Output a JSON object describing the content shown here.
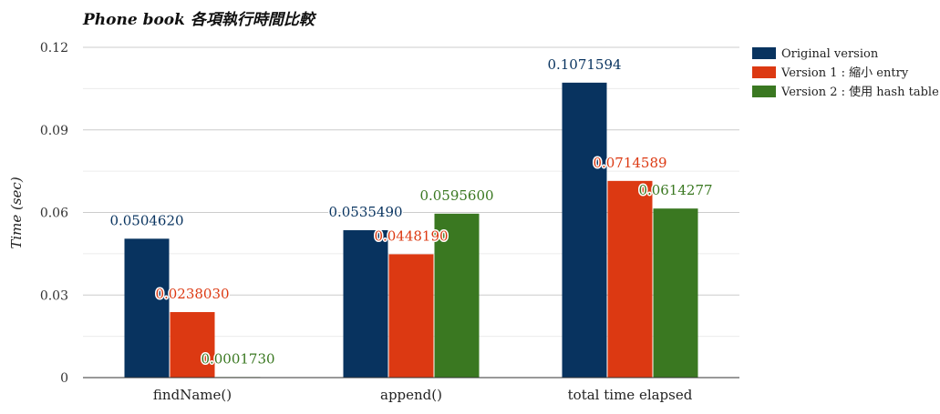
{
  "chart_data": {
    "type": "bar",
    "title": "Phone book 各項執行時間比較",
    "ylabel": "Time (sec)",
    "xlabel": "",
    "ylim": [
      0,
      0.12
    ],
    "yticks": [
      0,
      0.03,
      0.06,
      0.09,
      0.12
    ],
    "ytick_labels": [
      "0",
      "0.03",
      "0.06",
      "0.09",
      "0.12"
    ],
    "grid": true,
    "legend_position": "top-right",
    "categories": [
      "findName()",
      "append()",
      "total time elapsed"
    ],
    "series": [
      {
        "name": "Original version",
        "color": "#08335f",
        "values": [
          0.050462,
          0.053549,
          0.1071594
        ],
        "labels": [
          "0.0504620",
          "0.0535490",
          "0.1071594"
        ]
      },
      {
        "name": "Version 1 : 縮小 entry",
        "color": "#dc3912",
        "values": [
          0.023803,
          0.044819,
          0.0714589
        ],
        "labels": [
          "0.0238030",
          "0.0448190",
          "0.0714589"
        ]
      },
      {
        "name": "Version 2 : 使用 hash table",
        "color": "#3a7821",
        "values": [
          0.000173,
          0.05956,
          0.0614277
        ],
        "labels": [
          "0.0001730",
          "0.0595600",
          "0.0614277"
        ]
      }
    ]
  }
}
